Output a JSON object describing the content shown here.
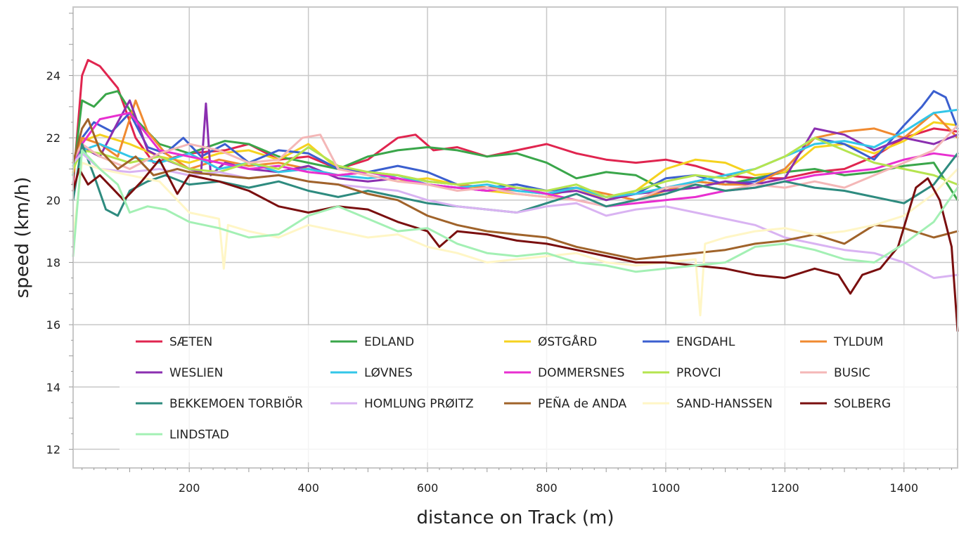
{
  "chart_data": {
    "type": "line",
    "xlabel": "distance on Track (m)",
    "ylabel": "speed (km/h)",
    "xlim": [
      5,
      1490
    ],
    "ylim": [
      11.4,
      26.2
    ],
    "x_ticks": [
      200,
      400,
      600,
      800,
      1000,
      1200,
      1400
    ],
    "y_ticks": [
      12,
      14,
      16,
      18,
      20,
      22,
      24
    ],
    "grid": true,
    "legend_placement": "lower-left inside plot, 5 columns",
    "series": [
      {
        "name": "SÆTEN",
        "color": "#e0254f",
        "x": [
          5,
          20,
          30,
          50,
          80,
          110,
          140,
          200,
          260,
          300,
          350,
          400,
          450,
          500,
          550,
          580,
          610,
          650,
          700,
          750,
          800,
          850,
          900,
          950,
          1000,
          1050,
          1100,
          1150,
          1200,
          1250,
          1300,
          1350,
          1400,
          1450,
          1490
        ],
        "y": [
          20.5,
          24.0,
          24.5,
          24.3,
          23.6,
          22.0,
          21.2,
          21.5,
          21.6,
          21.8,
          21.3,
          21.4,
          21.0,
          21.3,
          22.0,
          22.1,
          21.6,
          21.7,
          21.4,
          21.6,
          21.8,
          21.5,
          21.3,
          21.2,
          21.3,
          21.1,
          20.8,
          20.7,
          20.7,
          20.9,
          21.0,
          21.4,
          22.0,
          22.3,
          22.2
        ]
      },
      {
        "name": "EDLAND",
        "color": "#3aa64a",
        "x": [
          5,
          20,
          40,
          60,
          80,
          110,
          150,
          200,
          260,
          300,
          350,
          400,
          450,
          500,
          550,
          600,
          650,
          700,
          750,
          800,
          850,
          900,
          950,
          1000,
          1050,
          1100,
          1150,
          1200,
          1250,
          1300,
          1350,
          1400,
          1450,
          1490
        ],
        "y": [
          20.8,
          23.2,
          23.0,
          23.4,
          23.5,
          22.6,
          21.8,
          21.5,
          21.9,
          21.8,
          21.4,
          21.2,
          21.0,
          21.4,
          21.6,
          21.7,
          21.6,
          21.4,
          21.5,
          21.2,
          20.7,
          20.9,
          20.8,
          20.3,
          20.6,
          20.5,
          20.7,
          20.9,
          21.0,
          20.8,
          20.9,
          21.1,
          21.2,
          20.0
        ]
      },
      {
        "name": "ØSTGÅRD",
        "color": "#f5d21f",
        "x": [
          5,
          20,
          50,
          100,
          150,
          200,
          250,
          300,
          350,
          400,
          450,
          500,
          550,
          600,
          650,
          700,
          750,
          800,
          850,
          900,
          950,
          1000,
          1050,
          1100,
          1150,
          1200,
          1250,
          1300,
          1350,
          1400,
          1450,
          1490
        ],
        "y": [
          20.9,
          21.9,
          22.1,
          21.8,
          21.4,
          21.2,
          21.5,
          21.6,
          21.3,
          21.8,
          21.0,
          20.8,
          20.6,
          20.7,
          20.5,
          20.3,
          20.2,
          20.1,
          20.4,
          20.0,
          20.3,
          21.0,
          21.3,
          21.2,
          20.8,
          20.9,
          21.7,
          21.8,
          21.5,
          21.9,
          22.5,
          22.4
        ]
      },
      {
        "name": "ENGDAHL",
        "color": "#3b5fcf",
        "x": [
          5,
          20,
          40,
          70,
          100,
          130,
          160,
          190,
          220,
          260,
          300,
          350,
          400,
          450,
          500,
          550,
          600,
          650,
          700,
          750,
          800,
          850,
          900,
          950,
          1000,
          1050,
          1100,
          1150,
          1200,
          1250,
          1300,
          1350,
          1400,
          1430,
          1450,
          1470,
          1490
        ],
        "y": [
          21.0,
          22.0,
          22.5,
          22.2,
          22.8,
          21.7,
          21.5,
          22.0,
          21.4,
          21.8,
          21.2,
          21.6,
          21.5,
          21.0,
          20.9,
          21.1,
          20.9,
          20.5,
          20.4,
          20.5,
          20.3,
          20.4,
          20.1,
          20.2,
          20.7,
          20.8,
          20.5,
          20.6,
          21.0,
          22.0,
          21.8,
          21.3,
          22.4,
          23.0,
          23.5,
          23.3,
          22.3
        ]
      },
      {
        "name": "TYLDUM",
        "color": "#f08a30",
        "x": [
          5,
          20,
          50,
          80,
          110,
          130,
          160,
          200,
          250,
          300,
          350,
          400,
          450,
          500,
          550,
          600,
          650,
          700,
          750,
          800,
          850,
          900,
          950,
          1000,
          1050,
          1100,
          1150,
          1200,
          1250,
          1300,
          1350,
          1400,
          1450,
          1490
        ],
        "y": [
          21.2,
          22.0,
          21.8,
          21.4,
          23.2,
          22.2,
          21.5,
          21.0,
          21.3,
          21.1,
          21.2,
          21.0,
          20.8,
          20.9,
          20.8,
          20.6,
          20.5,
          20.4,
          20.3,
          20.2,
          20.4,
          20.2,
          20.0,
          20.3,
          20.6,
          20.5,
          20.5,
          21.0,
          22.0,
          22.2,
          22.3,
          22.0,
          22.8,
          22.0
        ]
      },
      {
        "name": "WESLIEN",
        "color": "#8b2fb0",
        "x": [
          5,
          20,
          50,
          80,
          100,
          130,
          160,
          200,
          220,
          228,
          236,
          260,
          300,
          350,
          400,
          450,
          500,
          550,
          600,
          650,
          700,
          750,
          800,
          850,
          900,
          950,
          1000,
          1050,
          1100,
          1150,
          1200,
          1250,
          1300,
          1350,
          1400,
          1450,
          1490
        ],
        "y": [
          21.0,
          21.7,
          21.4,
          22.5,
          23.2,
          21.6,
          21.3,
          21.0,
          20.9,
          23.1,
          20.8,
          21.2,
          21.0,
          20.9,
          21.1,
          20.7,
          20.6,
          20.7,
          20.5,
          20.4,
          20.3,
          20.4,
          20.2,
          20.3,
          20.0,
          20.2,
          20.3,
          20.4,
          20.6,
          20.5,
          20.7,
          22.3,
          22.1,
          21.6,
          22.0,
          21.8,
          22.1
        ]
      },
      {
        "name": "LØVNES",
        "color": "#33c6e8",
        "x": [
          5,
          20,
          50,
          100,
          150,
          200,
          250,
          300,
          350,
          400,
          450,
          500,
          550,
          600,
          650,
          700,
          750,
          800,
          850,
          900,
          950,
          1000,
          1050,
          1100,
          1150,
          1200,
          1250,
          1300,
          1350,
          1400,
          1450,
          1490
        ],
        "y": [
          21.1,
          21.6,
          21.8,
          21.4,
          21.2,
          21.5,
          21.0,
          21.2,
          20.9,
          21.0,
          20.8,
          20.7,
          20.8,
          20.5,
          20.4,
          20.5,
          20.3,
          20.2,
          20.4,
          20.1,
          20.2,
          20.4,
          20.6,
          20.8,
          21.0,
          21.4,
          21.8,
          21.9,
          21.7,
          22.2,
          22.8,
          22.9
        ]
      },
      {
        "name": "DOMMERSNES",
        "color": "#e82fd0",
        "x": [
          5,
          20,
          50,
          100,
          150,
          200,
          250,
          300,
          350,
          400,
          450,
          500,
          550,
          600,
          650,
          700,
          750,
          800,
          850,
          900,
          950,
          1000,
          1050,
          1100,
          1150,
          1200,
          1250,
          1300,
          1350,
          1400,
          1450,
          1490
        ],
        "y": [
          21.2,
          21.8,
          22.6,
          22.8,
          21.6,
          21.4,
          21.2,
          21.0,
          21.1,
          20.9,
          20.8,
          20.9,
          20.7,
          20.5,
          20.4,
          20.3,
          20.4,
          20.2,
          20.0,
          19.8,
          19.9,
          20.0,
          20.1,
          20.3,
          20.4,
          20.6,
          20.8,
          20.9,
          21.0,
          21.3,
          21.5,
          21.4
        ]
      },
      {
        "name": "PROVCI",
        "color": "#b5e44f",
        "x": [
          5,
          20,
          50,
          100,
          150,
          200,
          250,
          300,
          350,
          400,
          450,
          500,
          550,
          600,
          650,
          700,
          750,
          800,
          850,
          900,
          950,
          1000,
          1050,
          1100,
          1150,
          1200,
          1250,
          1300,
          1350,
          1400,
          1450,
          1490
        ],
        "y": [
          21.0,
          21.6,
          21.5,
          21.2,
          21.4,
          21.0,
          20.9,
          21.2,
          21.0,
          21.7,
          21.1,
          20.9,
          20.8,
          20.6,
          20.5,
          20.6,
          20.4,
          20.3,
          20.5,
          20.1,
          20.3,
          20.6,
          20.8,
          20.7,
          21.0,
          21.4,
          22.0,
          21.6,
          21.2,
          21.0,
          20.8,
          20.5
        ]
      },
      {
        "name": "BUSIC",
        "color": "#f4b7b7",
        "x": [
          5,
          20,
          50,
          100,
          150,
          200,
          250,
          300,
          350,
          390,
          420,
          450,
          500,
          550,
          600,
          650,
          700,
          750,
          800,
          850,
          900,
          950,
          1000,
          1050,
          1100,
          1150,
          1200,
          1250,
          1300,
          1350,
          1400,
          1450,
          1490
        ],
        "y": [
          21.3,
          21.8,
          21.4,
          21.0,
          21.5,
          21.8,
          21.6,
          21.2,
          21.3,
          22.0,
          22.1,
          21.0,
          20.8,
          20.6,
          20.5,
          20.3,
          20.4,
          20.2,
          20.1,
          20.0,
          19.8,
          20.0,
          20.4,
          20.5,
          20.3,
          20.5,
          20.4,
          20.6,
          20.4,
          20.8,
          21.2,
          21.6,
          22.4
        ]
      },
      {
        "name": "BEKKEMOEN TORBIÖR",
        "color": "#2e8b7f",
        "x": [
          5,
          20,
          40,
          60,
          80,
          100,
          130,
          160,
          200,
          250,
          300,
          350,
          400,
          450,
          500,
          550,
          600,
          650,
          700,
          750,
          800,
          850,
          900,
          950,
          1000,
          1050,
          1100,
          1150,
          1200,
          1250,
          1300,
          1350,
          1400,
          1450,
          1490
        ],
        "y": [
          20.0,
          21.8,
          20.8,
          19.7,
          19.5,
          20.3,
          20.6,
          20.8,
          20.5,
          20.6,
          20.4,
          20.6,
          20.3,
          20.1,
          20.3,
          20.1,
          19.9,
          19.8,
          19.7,
          19.6,
          19.9,
          20.2,
          19.8,
          20.0,
          20.2,
          20.5,
          20.3,
          20.4,
          20.6,
          20.4,
          20.3,
          20.1,
          19.9,
          20.5,
          21.5
        ]
      },
      {
        "name": "HOMLUNG PRØITZ",
        "color": "#d9b3f2",
        "x": [
          5,
          20,
          50,
          100,
          150,
          200,
          250,
          300,
          350,
          400,
          450,
          500,
          550,
          600,
          650,
          700,
          750,
          800,
          850,
          900,
          950,
          1000,
          1050,
          1100,
          1150,
          1200,
          1250,
          1300,
          1350,
          1400,
          1450,
          1490
        ],
        "y": [
          21.2,
          21.5,
          21.0,
          20.9,
          21.0,
          20.8,
          20.9,
          20.7,
          20.8,
          20.6,
          20.5,
          20.4,
          20.3,
          20.0,
          19.8,
          19.7,
          19.6,
          19.8,
          19.9,
          19.5,
          19.7,
          19.8,
          19.6,
          19.4,
          19.2,
          18.8,
          18.6,
          18.4,
          18.3,
          18.0,
          17.5,
          17.6
        ]
      },
      {
        "name": "PEÑA de ANDA",
        "color": "#a0632a",
        "x": [
          5,
          20,
          30,
          50,
          80,
          110,
          140,
          180,
          200,
          250,
          300,
          350,
          400,
          450,
          500,
          550,
          600,
          650,
          700,
          750,
          800,
          850,
          900,
          950,
          1000,
          1050,
          1100,
          1150,
          1200,
          1250,
          1300,
          1350,
          1400,
          1450,
          1490
        ],
        "y": [
          21.2,
          22.3,
          22.6,
          21.6,
          21.0,
          21.4,
          20.8,
          21.0,
          20.9,
          20.8,
          20.7,
          20.8,
          20.6,
          20.5,
          20.2,
          20.0,
          19.5,
          19.2,
          19.0,
          18.9,
          18.8,
          18.5,
          18.3,
          18.1,
          18.2,
          18.3,
          18.4,
          18.6,
          18.7,
          18.9,
          18.6,
          19.2,
          19.1,
          18.8,
          19.0
        ]
      },
      {
        "name": "SAND-HANSSEN",
        "color": "#fff6c6",
        "x": [
          5,
          20,
          50,
          100,
          150,
          200,
          250,
          258,
          265,
          300,
          350,
          400,
          450,
          500,
          550,
          600,
          650,
          700,
          750,
          800,
          850,
          900,
          950,
          1000,
          1050,
          1058,
          1066,
          1100,
          1150,
          1200,
          1250,
          1300,
          1350,
          1400,
          1450,
          1490
        ],
        "y": [
          18.8,
          21.2,
          21.0,
          20.8,
          20.6,
          19.6,
          19.4,
          17.8,
          19.2,
          19.0,
          18.8,
          19.2,
          19.0,
          18.8,
          18.9,
          18.5,
          18.3,
          18.0,
          18.1,
          18.2,
          18.3,
          18.0,
          17.9,
          18.0,
          18.1,
          16.3,
          18.6,
          18.8,
          19.0,
          19.1,
          18.9,
          19.0,
          19.2,
          19.5,
          20.2,
          21.0
        ]
      },
      {
        "name": "SOLBERG",
        "color": "#7a0f0f",
        "x": [
          5,
          15,
          30,
          50,
          70,
          90,
          120,
          150,
          180,
          200,
          250,
          300,
          350,
          400,
          450,
          500,
          550,
          600,
          620,
          650,
          700,
          750,
          800,
          850,
          900,
          950,
          1000,
          1050,
          1100,
          1150,
          1200,
          1250,
          1290,
          1310,
          1330,
          1360,
          1390,
          1420,
          1440,
          1460,
          1480,
          1490
        ],
        "y": [
          20.3,
          21.0,
          20.5,
          20.8,
          20.4,
          20.0,
          20.6,
          21.3,
          20.2,
          20.8,
          20.6,
          20.3,
          19.8,
          19.6,
          19.8,
          19.7,
          19.3,
          19.0,
          18.5,
          19.0,
          18.9,
          18.7,
          18.6,
          18.4,
          18.2,
          18.0,
          18.0,
          17.9,
          17.8,
          17.6,
          17.5,
          17.8,
          17.6,
          17.0,
          17.6,
          17.8,
          18.5,
          20.4,
          20.7,
          20.0,
          18.5,
          15.8
        ]
      },
      {
        "name": "LINDSTAD",
        "color": "#a3f0b4",
        "x": [
          5,
          20,
          50,
          80,
          100,
          130,
          160,
          200,
          250,
          300,
          350,
          400,
          450,
          500,
          550,
          600,
          650,
          700,
          750,
          800,
          850,
          900,
          950,
          1000,
          1050,
          1100,
          1150,
          1200,
          1250,
          1300,
          1350,
          1400,
          1450,
          1490
        ],
        "y": [
          18.2,
          21.6,
          21.0,
          20.5,
          19.6,
          19.8,
          19.7,
          19.3,
          19.1,
          18.8,
          18.9,
          19.5,
          19.8,
          19.4,
          19.0,
          19.1,
          18.6,
          18.3,
          18.2,
          18.3,
          18.0,
          17.9,
          17.7,
          17.8,
          17.9,
          18.0,
          18.5,
          18.6,
          18.4,
          18.1,
          18.0,
          18.6,
          19.3,
          20.4
        ]
      }
    ]
  }
}
